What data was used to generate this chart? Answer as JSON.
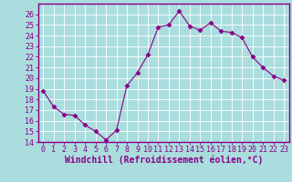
{
  "x": [
    0,
    1,
    2,
    3,
    4,
    5,
    6,
    7,
    8,
    9,
    10,
    11,
    12,
    13,
    14,
    15,
    16,
    17,
    18,
    19,
    20,
    21,
    22,
    23
  ],
  "y": [
    18.8,
    17.3,
    16.6,
    16.5,
    15.6,
    15.0,
    14.2,
    15.1,
    19.3,
    20.5,
    22.2,
    24.8,
    25.0,
    26.3,
    24.9,
    24.5,
    25.2,
    24.4,
    24.3,
    23.8,
    22.0,
    21.0,
    20.2,
    19.8
  ],
  "line_color": "#880088",
  "marker": "D",
  "marker_size": 2.5,
  "bg_color": "#aadddd",
  "grid_color": "#cceeee",
  "xlabel": "Windchill (Refroidissement éolien,°C)",
  "ylim": [
    14,
    27
  ],
  "xlim": [
    -0.5,
    23.5
  ],
  "yticks": [
    14,
    15,
    16,
    17,
    18,
    19,
    20,
    21,
    22,
    23,
    24,
    25,
    26
  ],
  "xticks": [
    0,
    1,
    2,
    3,
    4,
    5,
    6,
    7,
    8,
    9,
    10,
    11,
    12,
    13,
    14,
    15,
    16,
    17,
    18,
    19,
    20,
    21,
    22,
    23
  ],
  "tick_color": "#880088",
  "label_color": "#880088",
  "axis_color": "#880088",
  "xlabel_fontsize": 7,
  "tick_fontsize": 6
}
